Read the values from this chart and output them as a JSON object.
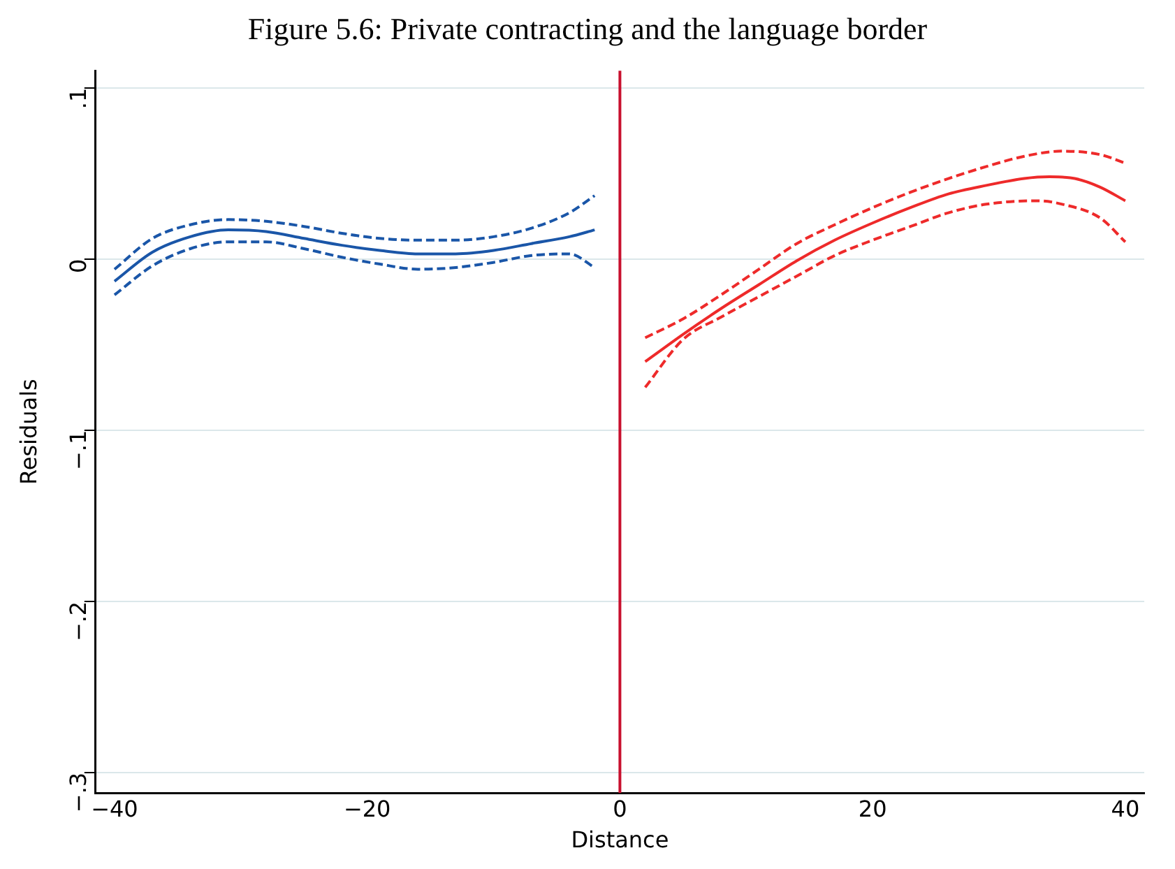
{
  "chart_data": {
    "type": "line",
    "title": "Figure 5.6: Private contracting and the language border",
    "xlabel": "Distance",
    "ylabel": "Residuals",
    "xlim": [
      -41.5,
      41.5
    ],
    "ylim": [
      -0.312,
      0.11
    ],
    "xticks": [
      {
        "value": -40,
        "label": "−40"
      },
      {
        "value": -20,
        "label": "−20"
      },
      0,
      20,
      40
    ],
    "yticks": [
      {
        "value": -0.3,
        "label": "−.3"
      },
      {
        "value": -0.2,
        "label": "−.2"
      },
      {
        "value": -0.1,
        "label": "−.1"
      },
      0,
      {
        "value": 0.1,
        "label": ".1"
      }
    ],
    "grid": "y",
    "legend": false,
    "marker": "none",
    "ref_lines": [
      {
        "axis": "x",
        "value": 0,
        "color": "#c8102e",
        "line_style": "solid"
      }
    ],
    "series": [
      {
        "color": "#1a56a8",
        "line_style": "solid",
        "x": [
          -40,
          -37,
          -34,
          -31,
          -28,
          -25,
          -22,
          -19,
          -16,
          -13,
          -10,
          -7,
          -4,
          -2
        ],
        "values": [
          -0.013,
          0.004,
          0.013,
          0.017,
          0.016,
          0.012,
          0.008,
          0.005,
          0.003,
          0.003,
          0.005,
          0.009,
          0.013,
          0.017
        ]
      },
      {
        "color": "#1a56a8",
        "line_style": "dashed",
        "x": [
          -40,
          -37,
          -34,
          -31,
          -28,
          -25,
          -22,
          -19,
          -16,
          -13,
          -10,
          -7,
          -4,
          -2
        ],
        "values": [
          -0.006,
          0.012,
          0.02,
          0.023,
          0.022,
          0.019,
          0.015,
          0.012,
          0.011,
          0.011,
          0.013,
          0.018,
          0.027,
          0.037
        ]
      },
      {
        "color": "#1a56a8",
        "line_style": "dashed",
        "x": [
          -40,
          -37,
          -34,
          -31,
          -28,
          -25,
          -22,
          -19,
          -16,
          -13,
          -10,
          -7,
          -4,
          -2
        ],
        "values": [
          -0.021,
          -0.004,
          0.006,
          0.01,
          0.01,
          0.006,
          0.001,
          -0.003,
          -0.006,
          -0.005,
          -0.002,
          0.002,
          0.003,
          -0.005
        ]
      },
      {
        "color": "#ee2a2a",
        "line_style": "solid",
        "x": [
          2,
          5,
          8,
          11,
          14,
          17,
          20,
          23,
          26,
          29,
          32,
          34,
          36,
          38,
          40
        ],
        "values": [
          -0.06,
          -0.044,
          -0.029,
          -0.015,
          -0.001,
          0.011,
          0.021,
          0.03,
          0.038,
          0.043,
          0.047,
          0.048,
          0.047,
          0.042,
          0.034
        ]
      },
      {
        "color": "#ee2a2a",
        "line_style": "dashed",
        "x": [
          2,
          5,
          8,
          11,
          14,
          17,
          20,
          23,
          26,
          29,
          32,
          35,
          38,
          40
        ],
        "values": [
          -0.046,
          -0.035,
          -0.021,
          -0.006,
          0.009,
          0.02,
          0.03,
          0.039,
          0.047,
          0.054,
          0.06,
          0.063,
          0.061,
          0.056
        ]
      },
      {
        "color": "#ee2a2a",
        "line_style": "dashed",
        "x": [
          2,
          5,
          8,
          11,
          14,
          17,
          20,
          23,
          26,
          29,
          33,
          35,
          38,
          40
        ],
        "values": [
          -0.075,
          -0.047,
          -0.034,
          -0.022,
          -0.01,
          0.002,
          0.011,
          0.019,
          0.027,
          0.032,
          0.034,
          0.032,
          0.024,
          0.01
        ]
      }
    ]
  }
}
